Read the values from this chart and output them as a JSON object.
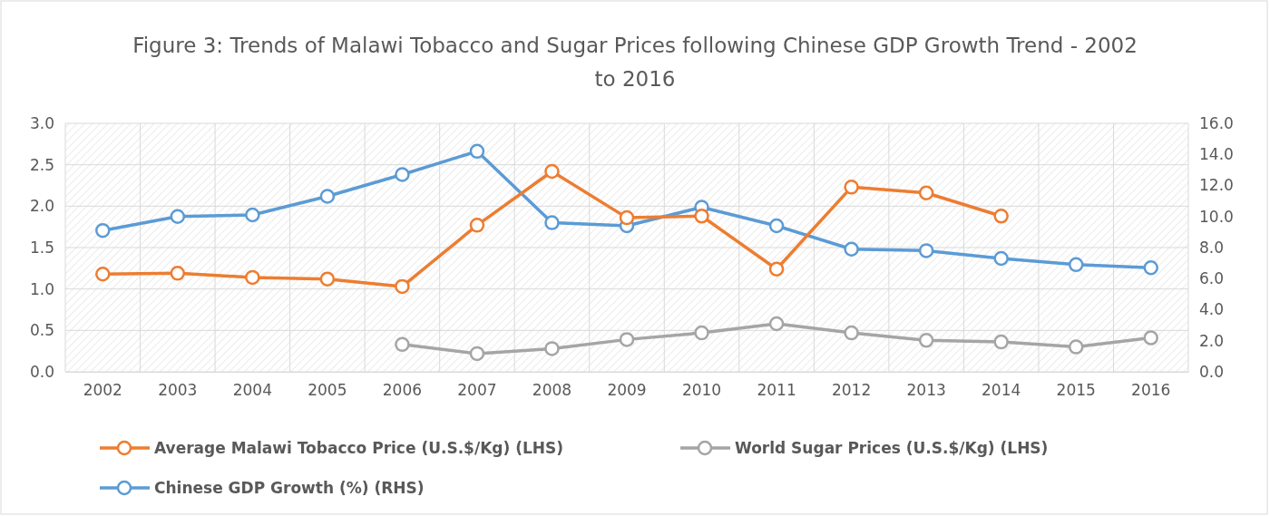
{
  "chart_data": {
    "type": "line",
    "title": "Figure 3: Trends of Malawi Tobacco and Sugar Prices following Chinese GDP Growth Trend - 2002 to 2016",
    "categories": [
      "2002",
      "2003",
      "2004",
      "2005",
      "2006",
      "2007",
      "2008",
      "2009",
      "2010",
      "2011",
      "2012",
      "2013",
      "2014",
      "2015",
      "2016"
    ],
    "series": [
      {
        "name": "Average Malawi Tobacco Price (U.S.$/Kg) (LHS)",
        "color": "#ed7d31",
        "values": [
          1.18,
          1.19,
          1.14,
          1.12,
          1.03,
          1.77,
          2.42,
          1.86,
          1.88,
          1.24,
          2.23,
          2.16,
          1.88,
          null,
          null
        ]
      },
      {
        "name": "World Sugar Prices (U.S.$/Kg) (LHS)",
        "color": "#a5a5a5",
        "values": [
          null,
          null,
          null,
          null,
          0.33,
          0.22,
          0.28,
          0.39,
          0.47,
          0.58,
          0.47,
          0.38,
          0.36,
          0.3,
          0.41
        ]
      },
      {
        "name": "Chinese GDP Growth (%) (RHS)",
        "color": "#5b9bd5",
        "axis": "y2",
        "values": [
          9.1,
          10.0,
          10.1,
          11.3,
          12.7,
          14.2,
          9.6,
          9.4,
          10.6,
          9.4,
          7.9,
          7.8,
          7.3,
          6.9,
          6.7
        ]
      }
    ],
    "ylim": [
      0,
      3
    ],
    "yticks": [
      {
        "value": 0,
        "label": "0.0"
      },
      {
        "value": 0.5,
        "label": "0.5"
      },
      {
        "value": 1,
        "label": "1.0"
      },
      {
        "value": 1.5,
        "label": "1.5"
      },
      {
        "value": 2,
        "label": "2.0"
      },
      {
        "value": 2.5,
        "label": "2.5"
      },
      {
        "value": 3,
        "label": "3.0"
      }
    ],
    "y2lim": [
      0,
      16
    ],
    "y2ticks": [
      {
        "value": 0,
        "label": "0.0"
      },
      {
        "value": 2,
        "label": "2.0"
      },
      {
        "value": 4,
        "label": "4.0"
      },
      {
        "value": 6,
        "label": "6.0"
      },
      {
        "value": 8,
        "label": "8.0"
      },
      {
        "value": 10,
        "label": "10.0"
      },
      {
        "value": 12,
        "label": "12.0"
      },
      {
        "value": 14,
        "label": "14.0"
      },
      {
        "value": 16,
        "label": "16.0"
      }
    ],
    "grid": true,
    "legend": "bottom",
    "marker": "circle",
    "line_style": "solid"
  }
}
